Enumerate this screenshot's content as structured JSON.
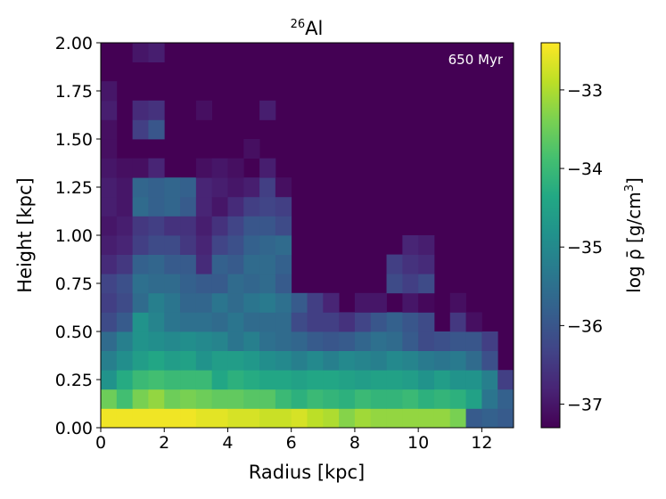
{
  "chart_data": {
    "type": "heatmap",
    "title_base": "Al",
    "title_superscript": "26",
    "annotation": "650 Myr",
    "xlabel": "Radius [kpc]",
    "ylabel": "Height [kpc]",
    "colorbar_label": "log ρ̄ [g/cm³]",
    "colorbar_label_base": "log ρ̄ [g/cm",
    "colorbar_label_exp": "3",
    "colorbar_label_close": "]",
    "colormap": "viridis",
    "xlim": [
      0,
      13
    ],
    "ylim": [
      0,
      2
    ],
    "clim": [
      -37.3,
      -32.4
    ],
    "xticks": [
      0,
      2,
      4,
      6,
      8,
      10,
      12
    ],
    "xtick_labels": [
      "0",
      "2",
      "4",
      "6",
      "8",
      "10",
      "12"
    ],
    "yticks": [
      0,
      0.25,
      0.5,
      0.75,
      1.0,
      1.25,
      1.5,
      1.75,
      2.0
    ],
    "ytick_labels": [
      "0.00",
      "0.25",
      "0.50",
      "0.75",
      "1.00",
      "1.25",
      "1.50",
      "1.75",
      "2.00"
    ],
    "cticks": [
      -33,
      -34,
      -35,
      -36,
      -37
    ],
    "ctick_labels": [
      "−33",
      "−34",
      "−35",
      "−36",
      "−37"
    ],
    "bin_width": 0.5,
    "bin_height": 0.1,
    "background_value": -37.3,
    "rows": [
      [
        -32.5,
        -32.5,
        -32.5,
        -32.5,
        -32.5,
        -32.5,
        -32.6,
        -32.6,
        -32.7,
        -32.7,
        -32.8,
        -32.8,
        -32.7,
        -32.9,
        -33.0,
        -33.3,
        -33.1,
        -33.2,
        -33.2,
        -33.2,
        -33.2,
        -33.2,
        -33.4,
        -35.9,
        -35.8,
        -35.9,
        -37.3
      ],
      [
        -33.5,
        -33.9,
        -33.4,
        -33.2,
        -33.5,
        -33.4,
        -33.5,
        -33.6,
        -33.6,
        -33.7,
        -33.7,
        -34.0,
        -34.2,
        -34.0,
        -34.1,
        -34.2,
        -34.0,
        -34.1,
        -34.1,
        -34.0,
        -34.2,
        -34.1,
        -34.2,
        -34.5,
        -35.4,
        -35.8,
        -37.3
      ],
      [
        -34.8,
        -34.3,
        -34.0,
        -33.9,
        -34.0,
        -34.0,
        -34.0,
        -34.4,
        -34.2,
        -34.3,
        -34.4,
        -34.4,
        -34.5,
        -34.4,
        -34.4,
        -34.5,
        -34.6,
        -34.5,
        -34.5,
        -34.6,
        -34.8,
        -34.6,
        -34.8,
        -34.8,
        -35.2,
        -36.4,
        -37.3
      ],
      [
        -35.2,
        -34.9,
        -34.6,
        -34.4,
        -34.6,
        -34.5,
        -34.8,
        -34.6,
        -34.6,
        -34.7,
        -34.9,
        -35.0,
        -35.2,
        -35.0,
        -35.2,
        -35.0,
        -35.1,
        -35.2,
        -35.0,
        -35.1,
        -35.3,
        -35.4,
        -35.3,
        -35.6,
        -36.1,
        -37.3,
        -37.3
      ],
      [
        -35.6,
        -35.2,
        -34.8,
        -34.9,
        -35.0,
        -34.9,
        -35.0,
        -35.1,
        -35.4,
        -35.2,
        -35.5,
        -35.6,
        -35.7,
        -35.9,
        -36.0,
        -35.9,
        -35.7,
        -35.5,
        -35.6,
        -35.9,
        -36.2,
        -36.1,
        -36.0,
        -36.0,
        -36.4,
        -37.3,
        -37.3
      ],
      [
        -36.2,
        -35.9,
        -34.8,
        -35.1,
        -35.4,
        -35.5,
        -35.5,
        -35.6,
        -35.4,
        -35.6,
        -35.6,
        -35.6,
        -36.2,
        -36.4,
        -36.4,
        -36.6,
        -36.3,
        -36.0,
        -35.8,
        -36.0,
        -36.2,
        -37.3,
        -36.5,
        -37.1,
        -37.3,
        -37.3,
        -37.3
      ],
      [
        -36.4,
        -36.2,
        -35.6,
        -35.2,
        -35.4,
        -35.7,
        -35.7,
        -35.4,
        -35.6,
        -35.4,
        -35.3,
        -35.5,
        -35.9,
        -36.4,
        -36.8,
        -37.3,
        -37.0,
        -37.0,
        -37.3,
        -37.0,
        -37.2,
        -37.3,
        -37.1,
        -37.3,
        -37.3,
        -37.3,
        -37.3
      ],
      [
        -36.3,
        -36.1,
        -35.5,
        -35.6,
        -35.6,
        -35.8,
        -35.9,
        -35.9,
        -35.6,
        -35.7,
        -35.6,
        -35.9,
        -37.3,
        -37.3,
        -37.3,
        -37.3,
        -37.3,
        -37.3,
        -36.2,
        -36.4,
        -36.2,
        -37.3,
        -37.3,
        -37.3,
        -37.3,
        -37.3,
        -37.3
      ],
      [
        -36.7,
        -36.5,
        -35.8,
        -35.7,
        -35.9,
        -35.9,
        -36.7,
        -35.8,
        -35.9,
        -35.6,
        -35.6,
        -35.8,
        -37.3,
        -37.3,
        -37.3,
        -37.3,
        -37.3,
        -37.3,
        -36.4,
        -36.6,
        -36.7,
        -37.3,
        -37.3,
        -37.3,
        -37.3,
        -37.3,
        -37.3
      ],
      [
        -36.9,
        -36.8,
        -36.4,
        -36.2,
        -36.2,
        -36.5,
        -36.8,
        -36.3,
        -36.1,
        -35.8,
        -35.7,
        -35.6,
        -37.3,
        -37.3,
        -37.3,
        -37.3,
        -37.3,
        -37.3,
        -37.3,
        -36.8,
        -36.9,
        -37.3,
        -37.3,
        -37.3,
        -37.3,
        -37.3,
        -37.3
      ],
      [
        -37.0,
        -36.9,
        -36.5,
        -36.4,
        -36.6,
        -36.6,
        -36.9,
        -36.6,
        -36.3,
        -36.0,
        -36.0,
        -36.2,
        -37.3,
        -37.3,
        -37.3,
        -37.3,
        -37.3,
        -37.3,
        -37.3,
        -37.3,
        -37.3,
        -37.3,
        -37.3,
        -37.3,
        -37.3,
        -37.3,
        -37.3
      ],
      [
        -36.9,
        -37.0,
        -35.6,
        -35.8,
        -35.7,
        -35.9,
        -36.8,
        -37.0,
        -36.7,
        -36.4,
        -36.3,
        -36.4,
        -37.3,
        -37.3,
        -37.3,
        -37.3,
        -37.3,
        -37.3,
        -37.3,
        -37.3,
        -37.3,
        -37.3,
        -37.3,
        -37.3,
        -37.3,
        -37.3,
        -37.3
      ],
      [
        -36.9,
        -37.0,
        -35.7,
        -35.8,
        -35.7,
        -35.8,
        -36.8,
        -36.9,
        -37.0,
        -36.9,
        -36.4,
        -37.1,
        -37.3,
        -37.3,
        -37.3,
        -37.3,
        -37.3,
        -37.3,
        -37.3,
        -37.3,
        -37.3,
        -37.3,
        -37.3,
        -37.3,
        -37.3,
        -37.3,
        -37.3
      ],
      [
        -37.0,
        -37.1,
        -37.1,
        -36.8,
        -37.3,
        -37.3,
        -37.1,
        -37.0,
        -37.1,
        -37.3,
        -36.9,
        -37.3,
        -37.3,
        -37.3,
        -37.3,
        -37.3,
        -37.3,
        -37.3,
        -37.3,
        -37.3,
        -37.3,
        -37.3,
        -37.3,
        -37.3,
        -37.3,
        -37.3,
        -37.3
      ],
      [
        -37.1,
        -37.3,
        -37.3,
        -37.3,
        -37.3,
        -37.3,
        -37.3,
        -37.3,
        -37.3,
        -37.1,
        -37.3,
        -37.3,
        -37.3,
        -37.3,
        -37.3,
        -37.3,
        -37.3,
        -37.3,
        -37.3,
        -37.3,
        -37.3,
        -37.3,
        -37.3,
        -37.3,
        -37.3,
        -37.3,
        -37.3
      ],
      [
        -37.1,
        -37.3,
        -36.4,
        -36.0,
        -37.3,
        -37.3,
        -37.3,
        -37.3,
        -37.3,
        -37.3,
        -37.3,
        -37.3,
        -37.3,
        -37.3,
        -37.3,
        -37.3,
        -37.3,
        -37.3,
        -37.3,
        -37.3,
        -37.3,
        -37.3,
        -37.3,
        -37.3,
        -37.3,
        -37.3,
        -37.3
      ],
      [
        -36.9,
        -37.3,
        -36.7,
        -36.6,
        -37.3,
        -37.3,
        -37.1,
        -37.3,
        -37.3,
        -37.3,
        -36.9,
        -37.3,
        -37.3,
        -37.3,
        -37.3,
        -37.3,
        -37.3,
        -37.3,
        -37.3,
        -37.3,
        -37.3,
        -37.3,
        -37.3,
        -37.3,
        -37.3,
        -37.3,
        -37.3
      ],
      [
        -37.0,
        -37.3,
        -37.3,
        -37.3,
        -37.3,
        -37.3,
        -37.3,
        -37.3,
        -37.3,
        -37.3,
        -37.3,
        -37.3,
        -37.3,
        -37.3,
        -37.3,
        -37.3,
        -37.3,
        -37.3,
        -37.3,
        -37.3,
        -37.3,
        -37.3,
        -37.3,
        -37.3,
        -37.3,
        -37.3,
        -37.3
      ],
      [
        -37.3,
        -37.3,
        -37.3,
        -37.3,
        -37.3,
        -37.3,
        -37.3,
        -37.3,
        -37.3,
        -37.3,
        -37.3,
        -37.3,
        -37.3,
        -37.3,
        -37.3,
        -37.3,
        -37.3,
        -37.3,
        -37.3,
        -37.3,
        -37.3,
        -37.3,
        -37.3,
        -37.3,
        -37.3,
        -37.3,
        -37.3
      ],
      [
        -37.3,
        -37.3,
        -37.0,
        -36.9,
        -37.3,
        -37.3,
        -37.3,
        -37.3,
        -37.3,
        -37.3,
        -37.3,
        -37.3,
        -37.3,
        -37.3,
        -37.3,
        -37.3,
        -37.3,
        -37.3,
        -37.3,
        -37.3,
        -37.3,
        -37.3,
        -37.3,
        -37.3,
        -37.3,
        -37.3,
        -37.3
      ]
    ]
  }
}
